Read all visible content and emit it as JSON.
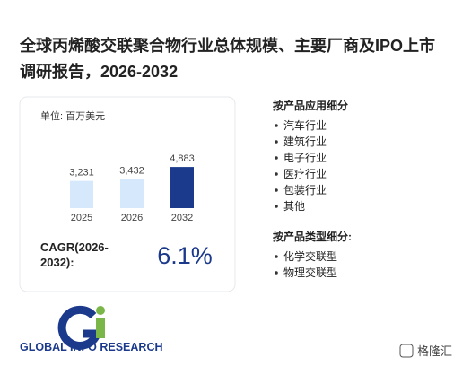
{
  "header": {
    "title_line1": "全球丙烯酸交联聚合物行业总体规模、主要厂商及IPO上市",
    "title_line2": "调研报告，2026-2032"
  },
  "chart_data": {
    "type": "bar",
    "unit": "单位: 百万美元",
    "categories": [
      "2025",
      "2026",
      "2032"
    ],
    "values": [
      3231,
      3432,
      4883
    ],
    "value_labels": [
      "3,231",
      "3,432",
      "4,883"
    ],
    "colors": [
      "#d6e8fb",
      "#d6e8fb",
      "#1c3a8c"
    ]
  },
  "cagr": {
    "label_line1": "CAGR(2026-",
    "label_line2": "2032):",
    "value": "6.1%"
  },
  "segments": [
    {
      "title": "按产品应用细分",
      "items": [
        "汽车行业",
        "建筑行业",
        "电子行业",
        "医疗行业",
        "包装行业",
        "其他"
      ]
    },
    {
      "title": "按产品类型细分:",
      "items": [
        "化学交联型",
        "物理交联型"
      ]
    }
  ],
  "logo": {
    "text": "GLOBAL INFO RESEARCH"
  },
  "footer": {
    "badge": "格隆汇"
  }
}
